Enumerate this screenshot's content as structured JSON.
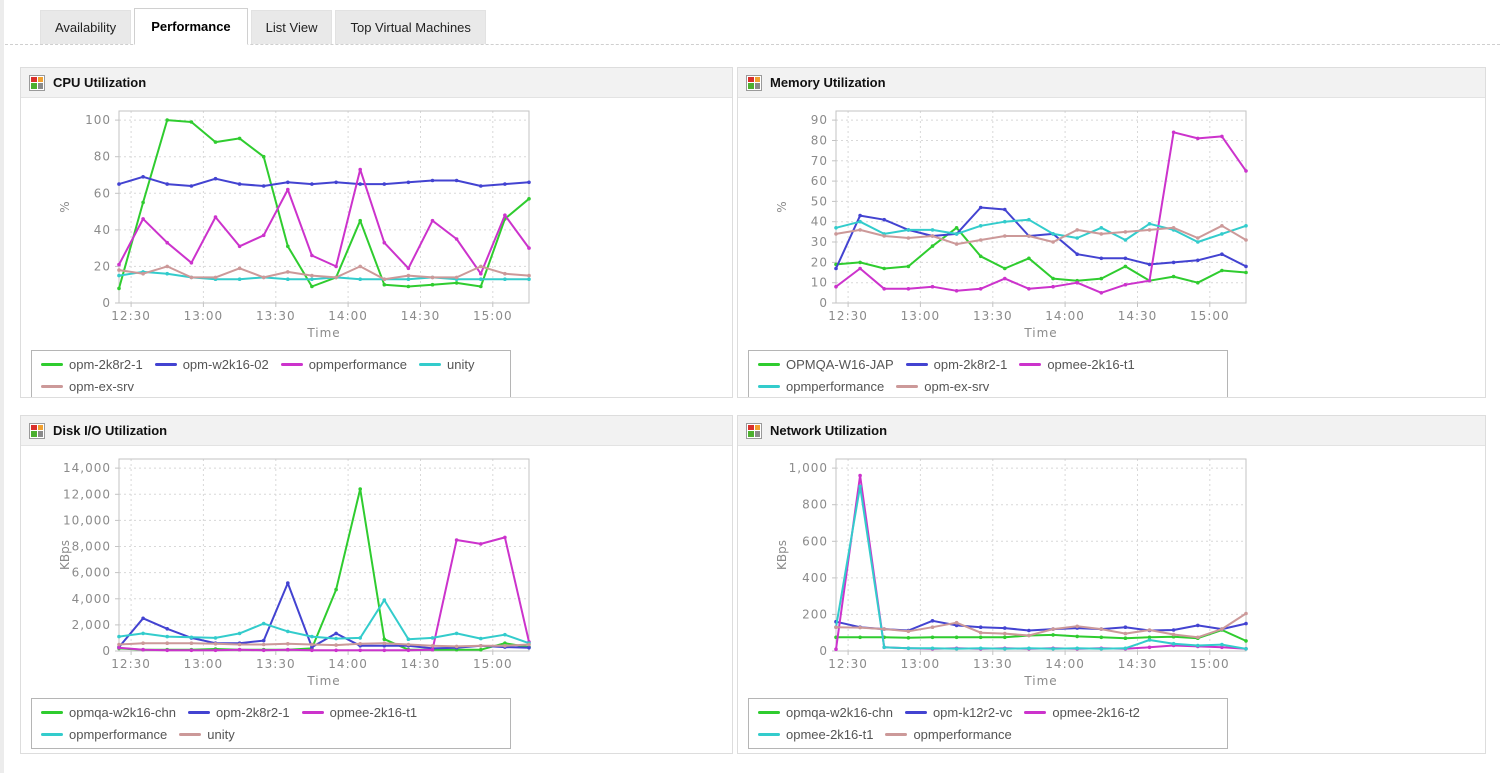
{
  "tabs": [
    {
      "label": "Availability",
      "active": false
    },
    {
      "label": "Performance",
      "active": true
    },
    {
      "label": "List View",
      "active": false
    },
    {
      "label": "Top Virtual Machines",
      "active": false
    }
  ],
  "panel_icon": {
    "name": "chart-icon",
    "colors": [
      "#d9302c",
      "#f0a030",
      "#4caf2f",
      "#8a8a8a"
    ]
  },
  "chart_style": {
    "grid": "#d8d8d8",
    "axis": "#c3c3c3",
    "text": "#8b8b8b"
  },
  "chart_data": [
    {
      "type": "line",
      "title": "CPU Utilization",
      "xlabel": "Time",
      "ylabel": "%",
      "ylim": [
        0,
        100
      ],
      "ytick_step": 20,
      "x_start": "12:25",
      "x_step_min": 10,
      "xticks": [
        "12:30",
        "13:00",
        "13:30",
        "14:00",
        "14:30",
        "15:00"
      ],
      "series": [
        {
          "name": "opm-2k8r2-1",
          "color": "#2fcc2f",
          "values": [
            8,
            55,
            100,
            99,
            88,
            90,
            80,
            31,
            9,
            14,
            45,
            10,
            9,
            10,
            11,
            9,
            46,
            57
          ]
        },
        {
          "name": "opm-w2k16-02",
          "color": "#4343d1",
          "values": [
            65,
            69,
            65,
            64,
            68,
            65,
            64,
            66,
            65,
            66,
            65,
            65,
            66,
            67,
            67,
            64,
            65,
            66
          ]
        },
        {
          "name": "opmperformance",
          "color": "#cc33cc",
          "values": [
            21,
            46,
            33,
            22,
            47,
            31,
            37,
            62,
            26,
            20,
            73,
            33,
            19,
            45,
            35,
            16,
            48,
            30
          ]
        },
        {
          "name": "unity",
          "color": "#33cccc",
          "values": [
            15,
            17,
            16,
            14,
            13,
            13,
            14,
            13,
            13,
            14,
            13,
            13,
            13,
            14,
            13,
            13,
            13,
            13
          ]
        },
        {
          "name": "opm-ex-srv",
          "color": "#cc9999",
          "values": [
            18,
            16,
            20,
            14,
            14,
            19,
            14,
            17,
            15,
            14,
            20,
            13,
            15,
            14,
            14,
            20,
            16,
            15
          ]
        }
      ]
    },
    {
      "type": "line",
      "title": "Memory Utilization",
      "xlabel": "Time",
      "ylabel": "%",
      "ylim": [
        0,
        90
      ],
      "ytick_step": 10,
      "x_start": "12:25",
      "x_step_min": 10,
      "xticks": [
        "12:30",
        "13:00",
        "13:30",
        "14:00",
        "14:30",
        "15:00"
      ],
      "series": [
        {
          "name": "OPMQA-W16-JAP",
          "color": "#2fcc2f",
          "values": [
            19,
            20,
            17,
            18,
            28,
            37,
            23,
            17,
            22,
            12,
            11,
            12,
            18,
            11,
            13,
            10,
            16,
            15
          ]
        },
        {
          "name": "opm-2k8r2-1",
          "color": "#4343d1",
          "values": [
            17,
            43,
            41,
            36,
            33,
            34,
            47,
            46,
            33,
            34,
            24,
            22,
            22,
            19,
            20,
            21,
            24,
            18
          ]
        },
        {
          "name": "opmee-2k16-t1",
          "color": "#cc33cc",
          "values": [
            8,
            17,
            7,
            7,
            8,
            6,
            7,
            12,
            7,
            8,
            10,
            5,
            9,
            11,
            84,
            81,
            82,
            65
          ]
        },
        {
          "name": "opmperformance",
          "color": "#33cccc",
          "values": [
            37,
            40,
            34,
            36,
            36,
            34,
            38,
            40,
            41,
            34,
            32,
            37,
            31,
            39,
            36,
            30,
            34,
            38
          ]
        },
        {
          "name": "opm-ex-srv",
          "color": "#cc9999",
          "values": [
            34,
            36,
            33,
            32,
            33,
            29,
            31,
            33,
            33,
            30,
            36,
            34,
            35,
            36,
            37,
            32,
            38,
            31
          ]
        }
      ]
    },
    {
      "type": "line",
      "title": "Disk I/O Utilization",
      "xlabel": "Time",
      "ylabel": "KBps",
      "ylim": [
        0,
        14000
      ],
      "ytick_step": 2000,
      "x_start": "12:25",
      "x_step_min": 10,
      "xticks": [
        "12:30",
        "13:00",
        "13:30",
        "14:00",
        "14:30",
        "15:00"
      ],
      "series": [
        {
          "name": "opmqa-w2k16-chn",
          "color": "#2fcc2f",
          "values": [
            200,
            100,
            100,
            100,
            150,
            100,
            100,
            100,
            200,
            4700,
            12400,
            900,
            100,
            100,
            100,
            100,
            600,
            300
          ]
        },
        {
          "name": "opm-2k8r2-1",
          "color": "#4343d1",
          "values": [
            300,
            2500,
            1700,
            1000,
            600,
            600,
            800,
            5200,
            300,
            1350,
            400,
            400,
            400,
            200,
            250,
            400,
            300,
            250
          ]
        },
        {
          "name": "opmee-2k16-t1",
          "color": "#cc33cc",
          "values": [
            250,
            100,
            50,
            50,
            50,
            100,
            50,
            100,
            50,
            50,
            50,
            50,
            50,
            100,
            8500,
            8200,
            8700,
            700
          ]
        },
        {
          "name": "opmperformance",
          "color": "#33cccc",
          "values": [
            1100,
            1350,
            1100,
            1050,
            1000,
            1350,
            2100,
            1500,
            1100,
            950,
            1000,
            3900,
            900,
            1000,
            1350,
            950,
            1250,
            600
          ]
        },
        {
          "name": "unity",
          "color": "#cc9999",
          "values": [
            500,
            600,
            600,
            600,
            550,
            500,
            500,
            550,
            500,
            450,
            550,
            600,
            500,
            400,
            350,
            400,
            400,
            500
          ]
        }
      ]
    },
    {
      "type": "line",
      "title": "Network Utilization",
      "xlabel": "Time",
      "ylabel": "KBps",
      "ylim": [
        0,
        1000
      ],
      "ytick_step": 200,
      "x_start": "12:25",
      "x_step_min": 10,
      "xticks": [
        "12:30",
        "13:00",
        "13:30",
        "14:00",
        "14:30",
        "15:00"
      ],
      "series": [
        {
          "name": "opmqa-w2k16-chn",
          "color": "#2fcc2f",
          "values": [
            75,
            75,
            75,
            72,
            75,
            75,
            75,
            75,
            85,
            88,
            80,
            75,
            70,
            75,
            78,
            70,
            115,
            55
          ]
        },
        {
          "name": "opm-k12r2-vc",
          "color": "#4343d1",
          "values": [
            160,
            130,
            120,
            112,
            165,
            140,
            130,
            125,
            112,
            120,
            125,
            120,
            130,
            112,
            115,
            140,
            120,
            150
          ]
        },
        {
          "name": "opmee-2k16-t2",
          "color": "#cc33cc",
          "values": [
            10,
            960,
            20,
            15,
            12,
            15,
            12,
            15,
            12,
            15,
            12,
            15,
            12,
            20,
            30,
            25,
            20,
            12
          ]
        },
        {
          "name": "opmee-2k16-t1",
          "color": "#33cccc",
          "values": [
            130,
            900,
            20,
            15,
            15,
            12,
            15,
            12,
            15,
            12,
            15,
            12,
            15,
            60,
            40,
            30,
            35,
            12
          ]
        },
        {
          "name": "opmperformance",
          "color": "#cc9999",
          "values": [
            130,
            128,
            120,
            108,
            130,
            155,
            100,
            95,
            85,
            120,
            135,
            120,
            95,
            115,
            90,
            75,
            120,
            205
          ]
        }
      ]
    }
  ]
}
